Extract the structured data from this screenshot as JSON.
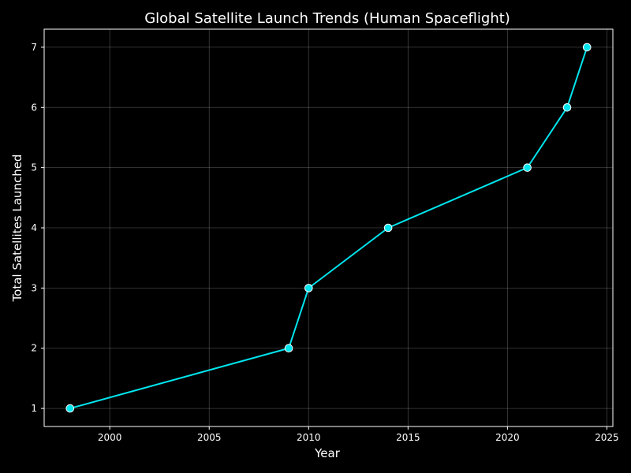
{
  "chart_data": {
    "type": "line",
    "title": "Global Satellite Launch Trends (Human Spaceflight)",
    "xlabel": "Year",
    "ylabel": "Total Satellites Launched",
    "x": [
      1998,
      2009,
      2010,
      2014,
      2021,
      2023,
      2024
    ],
    "y": [
      1,
      2,
      3,
      4,
      5,
      6,
      7
    ],
    "xlim": [
      1996.7,
      2025.3
    ],
    "ylim": [
      0.7,
      7.3
    ],
    "xticks": [
      2000,
      2005,
      2010,
      2015,
      2020,
      2025
    ],
    "yticks": [
      1,
      2,
      3,
      4,
      5,
      6,
      7
    ],
    "grid": true,
    "legend": "none",
    "colors": {
      "background": "#000000",
      "line": "#00e5ee",
      "marker_fill": "#00e5ee",
      "marker_edge": "#ffffff",
      "text": "#ffffff"
    }
  }
}
